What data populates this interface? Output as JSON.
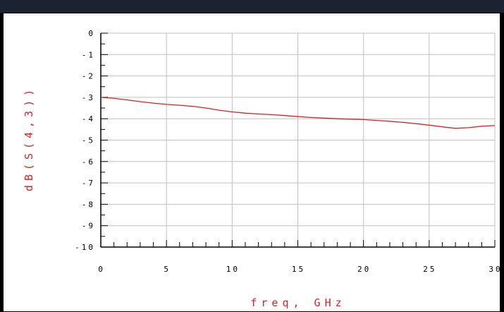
{
  "chart_data": {
    "type": "line",
    "xlabel": "freq, GHz",
    "ylabel": "dB(S(4,3))",
    "xlim": [
      0,
      30
    ],
    "ylim": [
      -10,
      0
    ],
    "xticks": [
      0,
      5,
      10,
      15,
      20,
      25,
      30
    ],
    "yticks": [
      0,
      -1,
      -2,
      -3,
      -4,
      -5,
      -6,
      -7,
      -8,
      -9,
      -10
    ],
    "grid": true,
    "series": [
      {
        "color": "#e02020",
        "x": [
          0,
          1,
          2,
          3,
          4,
          5,
          6,
          7,
          8,
          9,
          10,
          11,
          12,
          13,
          14,
          15,
          16,
          17,
          18,
          19,
          20,
          21,
          22,
          23,
          24,
          25,
          26,
          27,
          28,
          29,
          30
        ],
        "y": [
          -3.0,
          -3.05,
          -3.12,
          -3.2,
          -3.27,
          -3.33,
          -3.37,
          -3.42,
          -3.5,
          -3.6,
          -3.68,
          -3.74,
          -3.78,
          -3.81,
          -3.85,
          -3.9,
          -3.94,
          -3.97,
          -4.0,
          -4.02,
          -4.04,
          -4.08,
          -4.12,
          -4.17,
          -4.23,
          -4.3,
          -4.38,
          -4.45,
          -4.42,
          -4.35,
          -4.32
        ]
      }
    ]
  },
  "colors": {
    "axis_label": "#e02020",
    "grid": "#c0c0c0",
    "axis": "#000000",
    "background": "#ffffff"
  }
}
